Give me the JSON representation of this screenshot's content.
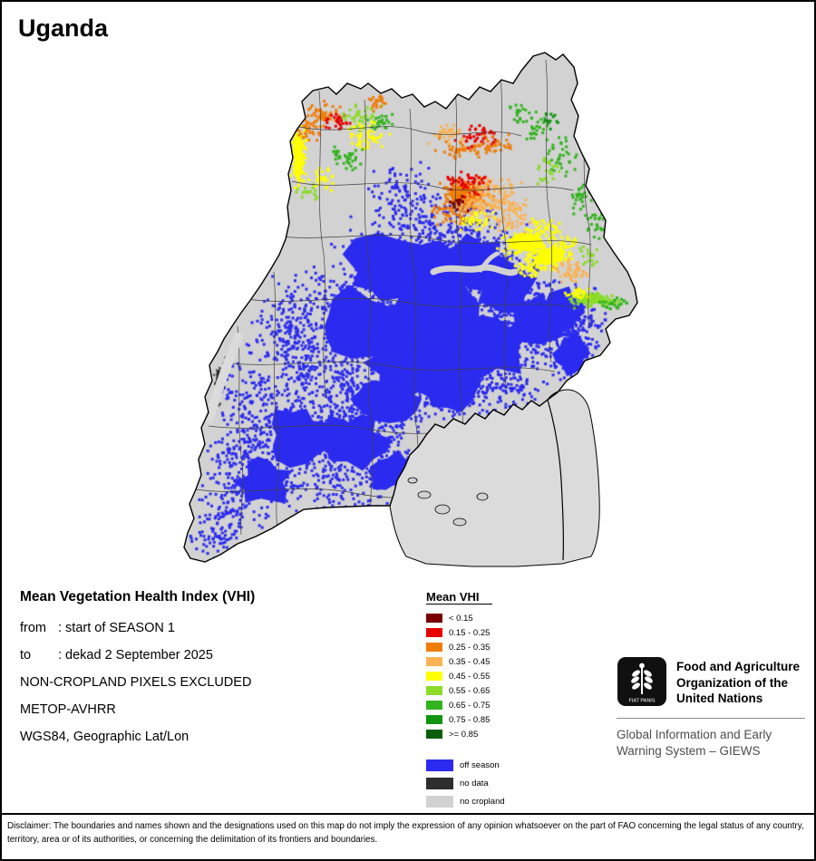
{
  "page": {
    "title": "Uganda"
  },
  "info": {
    "heading": "Mean Vegetation Health Index (VHI)",
    "period_lines": [
      {
        "prefix": "from",
        "text": ": start of SEASON 1"
      },
      {
        "prefix": "to",
        "text": ": dekad 2 September 2025"
      }
    ],
    "meta_lines": [
      "NON-CROPLAND PIXELS EXCLUDED",
      "METOP-AVHRR",
      "WGS84, Geographic Lat/Lon"
    ]
  },
  "legend": {
    "title": "Mean VHI",
    "vhi_entries": [
      {
        "label": "< 0.15",
        "color": "#780000"
      },
      {
        "label": "0.15 - 0.25",
        "color": "#E60000"
      },
      {
        "label": "0.25 - 0.35",
        "color": "#F07D0A"
      },
      {
        "label": "0.35 - 0.45",
        "color": "#FAB355"
      },
      {
        "label": "0.45 - 0.55",
        "color": "#FFFF00"
      },
      {
        "label": "0.55 - 0.65",
        "color": "#8ADC28"
      },
      {
        "label": "0.65 - 0.75",
        "color": "#32B41E"
      },
      {
        "label": "0.75 - 0.85",
        "color": "#109510"
      },
      {
        "label": ">= 0.85",
        "color": "#0B5E0B"
      }
    ],
    "other_entries": [
      {
        "label": "off season",
        "color": "#2B2BF0"
      },
      {
        "label": "no data",
        "color": "#2E2E2E"
      },
      {
        "label": "no cropland",
        "color": "#D2D2D2"
      }
    ]
  },
  "map": {
    "country": "Uganda",
    "lake_color": "#DBDBDB",
    "border_color": "#000000",
    "district_line_color": "#404040"
  },
  "footer": {
    "fao_logo": {
      "motto": "FIAT PANIS"
    },
    "fao_name_lines": [
      "Food and Agriculture",
      "Organization of the",
      "United Nations"
    ],
    "giews_lines": [
      "Global Information and Early",
      "Warning System – GIEWS"
    ]
  },
  "disclaimer": "Disclaimer: The boundaries and names shown and the designations used on this map do not imply the expression of any opinion whatsoever on the part of FAO concerning the legal status of any country, territory, area or of its authorities, or concerning the delimitation of its frontiers and boundaries."
}
